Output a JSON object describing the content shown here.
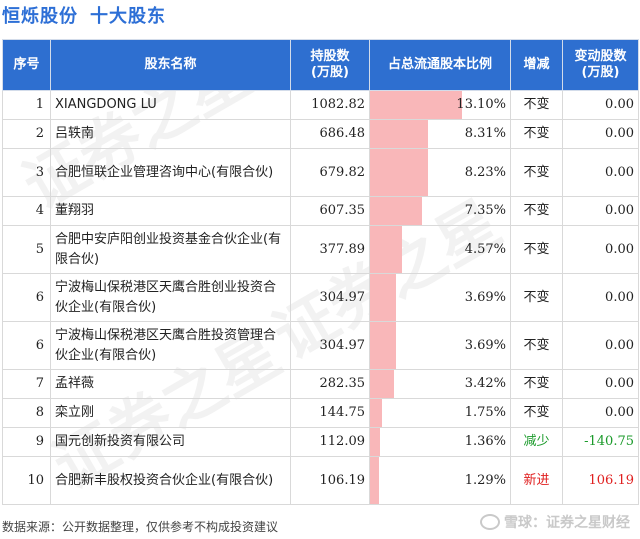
{
  "header": {
    "company": "恒烁股份",
    "title": "十大股东"
  },
  "columns": [
    "序号",
    "股东名称",
    "持股数\n(万股)",
    "占总流通股本比例",
    "增减",
    "变动股数\n(万股)"
  ],
  "rows": [
    {
      "idx": "1",
      "name": "XIANGDONG LU",
      "shares": "1082.82",
      "pct_text": "13.10%",
      "pct": 13.1,
      "change": "不变",
      "delta": "0.00",
      "type": "same"
    },
    {
      "idx": "2",
      "name": "吕轶南",
      "shares": "686.48",
      "pct_text": "8.31%",
      "pct": 8.31,
      "change": "不变",
      "delta": "0.00",
      "type": "same"
    },
    {
      "idx": "3",
      "name": "合肥恒联企业管理咨询中心(有限合伙)",
      "shares": "679.82",
      "pct_text": "8.23%",
      "pct": 8.23,
      "change": "不变",
      "delta": "0.00",
      "type": "same"
    },
    {
      "idx": "4",
      "name": "董翔羽",
      "shares": "607.35",
      "pct_text": "7.35%",
      "pct": 7.35,
      "change": "不变",
      "delta": "0.00",
      "type": "same"
    },
    {
      "idx": "5",
      "name": "合肥中安庐阳创业投资基金合伙企业(有限合伙)",
      "shares": "377.89",
      "pct_text": "4.57%",
      "pct": 4.57,
      "change": "不变",
      "delta": "0.00",
      "type": "same"
    },
    {
      "idx": "6",
      "name": "宁波梅山保税港区天鹰合胜创业投资合伙企业(有限合伙)",
      "shares": "304.97",
      "pct_text": "3.69%",
      "pct": 3.69,
      "change": "不变",
      "delta": "0.00",
      "type": "same"
    },
    {
      "idx": "6",
      "name": "宁波梅山保税港区天鹰合胜投资管理合伙企业(有限合伙)",
      "shares": "304.97",
      "pct_text": "3.69%",
      "pct": 3.69,
      "change": "不变",
      "delta": "0.00",
      "type": "same"
    },
    {
      "idx": "7",
      "name": "孟祥薇",
      "shares": "282.35",
      "pct_text": "3.42%",
      "pct": 3.42,
      "change": "不变",
      "delta": "0.00",
      "type": "same"
    },
    {
      "idx": "8",
      "name": "栾立刚",
      "shares": "144.75",
      "pct_text": "1.75%",
      "pct": 1.75,
      "change": "不变",
      "delta": "0.00",
      "type": "same"
    },
    {
      "idx": "9",
      "name": "国元创新投资有限公司",
      "shares": "112.09",
      "pct_text": "1.36%",
      "pct": 1.36,
      "change": "减少",
      "delta": "-140.75",
      "type": "dec"
    },
    {
      "idx": "10",
      "name": "合肥新丰股权投资合伙企业(有限合伙)",
      "shares": "106.19",
      "pct_text": "1.29%",
      "pct": 1.29,
      "change": "新进",
      "delta": "106.19",
      "type": "new"
    }
  ],
  "footer": {
    "source": "数据来源：公开数据整理，仅供参考不构成投资建议"
  },
  "brand": {
    "text": "雪球：证券之星财经"
  },
  "watermark": [
    "证券之星",
    "证券之星",
    "证券之星"
  ]
}
